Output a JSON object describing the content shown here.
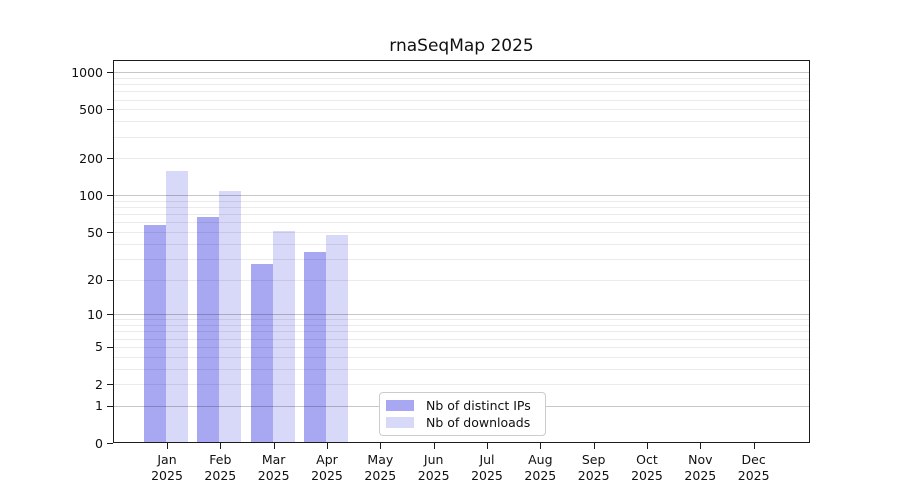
{
  "chart_data": {
    "type": "bar",
    "title": "rnaSeqMap 2025",
    "categories": [
      "Jan",
      "Feb",
      "Mar",
      "Apr",
      "May",
      "Jun",
      "Jul",
      "Aug",
      "Sep",
      "Oct",
      "Nov",
      "Dec"
    ],
    "category_year": "2025",
    "series": [
      {
        "name": "Nb of distinct IPs",
        "color": "#a8a8f2",
        "values": [
          57,
          66,
          27,
          34,
          null,
          null,
          null,
          null,
          null,
          null,
          null,
          null
        ]
      },
      {
        "name": "Nb of downloads",
        "color": "#d8d8f8",
        "values": [
          158,
          108,
          51,
          47,
          null,
          null,
          null,
          null,
          null,
          null,
          null,
          null
        ]
      }
    ],
    "yscale": "log10(value+1)",
    "ylim": [
      0,
      1258
    ],
    "y_ticks": [
      0,
      1,
      2,
      5,
      10,
      20,
      50,
      100,
      200,
      500,
      1000
    ],
    "xlabel": "",
    "ylabel": "",
    "grid": "horizontal major+minor",
    "legend_position": "inside lower-left-of-center"
  }
}
